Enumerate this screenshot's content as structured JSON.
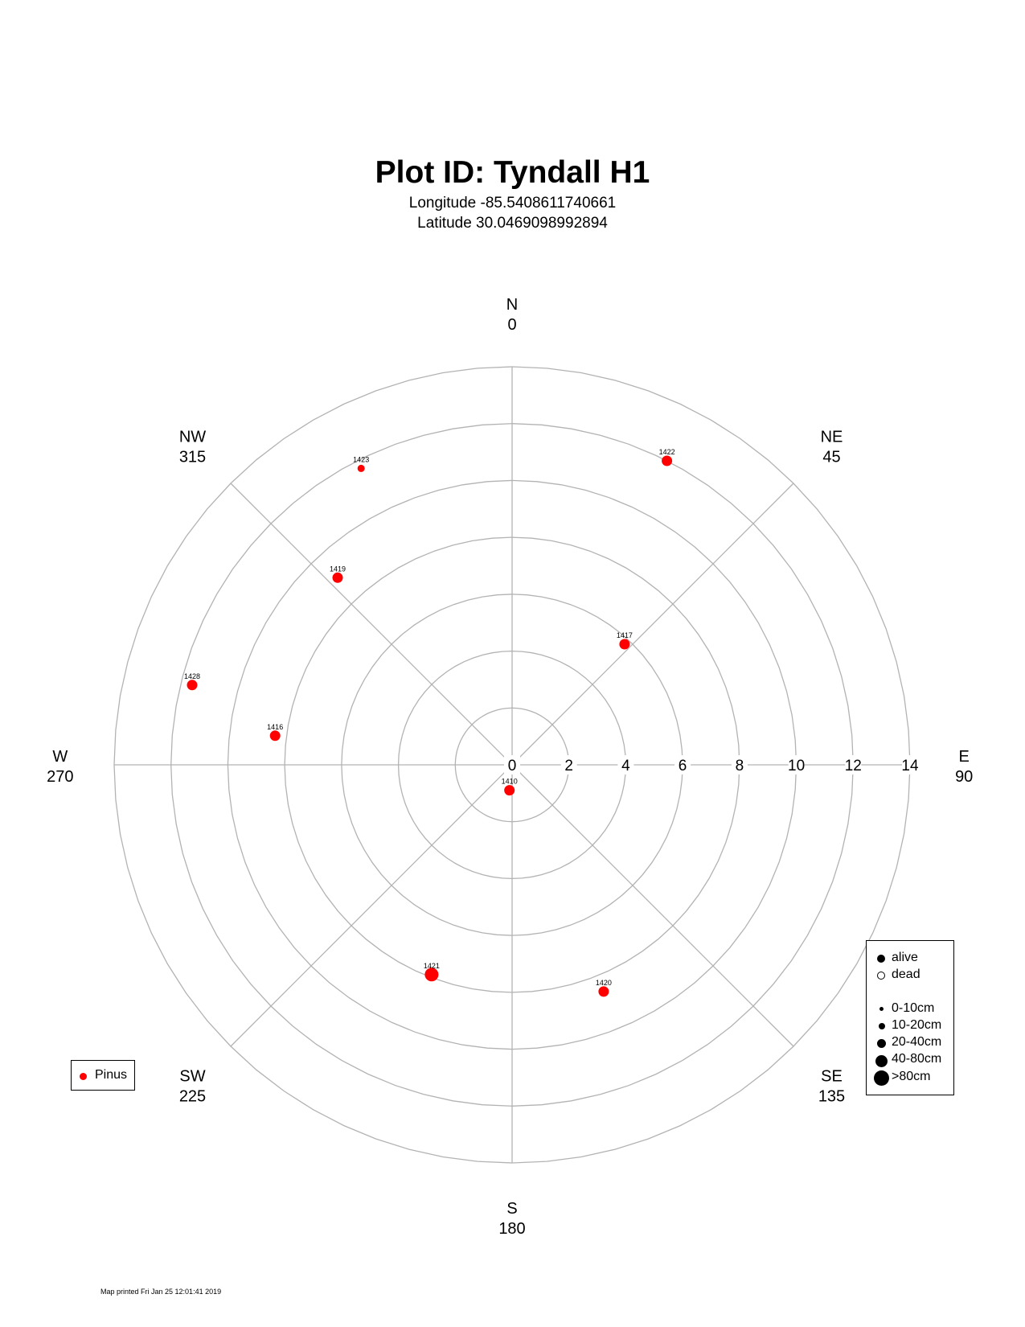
{
  "title": "Plot ID:  Tyndall H1",
  "longitude_text": "Longitude -85.5408611740661",
  "latitude_text": "Latitude 30.0469098992894",
  "footer": "Map printed Fri Jan 25 12:01:41 2019",
  "chart_data": {
    "type": "scatter",
    "coordinate_system": "polar",
    "angle_units": "degrees (compass bearing, clockwise from N)",
    "radial_axis": {
      "min": 0,
      "max": 14,
      "ticks": [
        0,
        2,
        4,
        6,
        8,
        10,
        12,
        14
      ]
    },
    "direction_labels": [
      {
        "name": "N",
        "deg": 0,
        "deg_label": "0"
      },
      {
        "name": "NE",
        "deg": 45,
        "deg_label": "45"
      },
      {
        "name": "E",
        "deg": 90,
        "deg_label": "90"
      },
      {
        "name": "SE",
        "deg": 135,
        "deg_label": "135"
      },
      {
        "name": "S",
        "deg": 180,
        "deg_label": "180"
      },
      {
        "name": "SW",
        "deg": 225,
        "deg_label": "225"
      },
      {
        "name": "W",
        "deg": 270,
        "deg_label": "270"
      },
      {
        "name": "NW",
        "deg": 315,
        "deg_label": "315"
      }
    ],
    "grid": true,
    "grid_color": "#b3b3b3",
    "point_color": "#ff0000",
    "series": [
      {
        "name": "Pinus",
        "color": "#ff0000",
        "points": [
          {
            "id": "1410",
            "azimuth": 186,
            "distance": 0.9,
            "size_class": "10-20cm"
          },
          {
            "id": "1416",
            "azimuth": 277,
            "distance": 8.4,
            "size_class": "10-20cm"
          },
          {
            "id": "1417",
            "azimuth": 43,
            "distance": 5.8,
            "size_class": "10-20cm"
          },
          {
            "id": "1419",
            "azimuth": 317,
            "distance": 9.0,
            "size_class": "10-20cm"
          },
          {
            "id": "1420",
            "azimuth": 158,
            "distance": 8.6,
            "size_class": "10-20cm"
          },
          {
            "id": "1421",
            "azimuth": 201,
            "distance": 7.9,
            "size_class": "20-40cm"
          },
          {
            "id": "1422",
            "azimuth": 27,
            "distance": 12.0,
            "size_class": "10-20cm"
          },
          {
            "id": "1423",
            "azimuth": 333,
            "distance": 11.7,
            "size_class": "0-10cm"
          },
          {
            "id": "1428",
            "azimuth": 284,
            "distance": 11.6,
            "size_class": "10-20cm"
          }
        ]
      }
    ],
    "species_legend": {
      "placement": "bottom-left",
      "items": [
        {
          "label": "Pinus",
          "color": "#ff0000"
        }
      ]
    },
    "status_legend": {
      "placement": "bottom-right",
      "status": [
        {
          "label": "alive",
          "filled": true
        },
        {
          "label": "dead",
          "filled": false
        }
      ],
      "size_classes": [
        "0-10cm",
        "10-20cm",
        "20-40cm",
        "40-80cm",
        ">80cm"
      ]
    }
  }
}
